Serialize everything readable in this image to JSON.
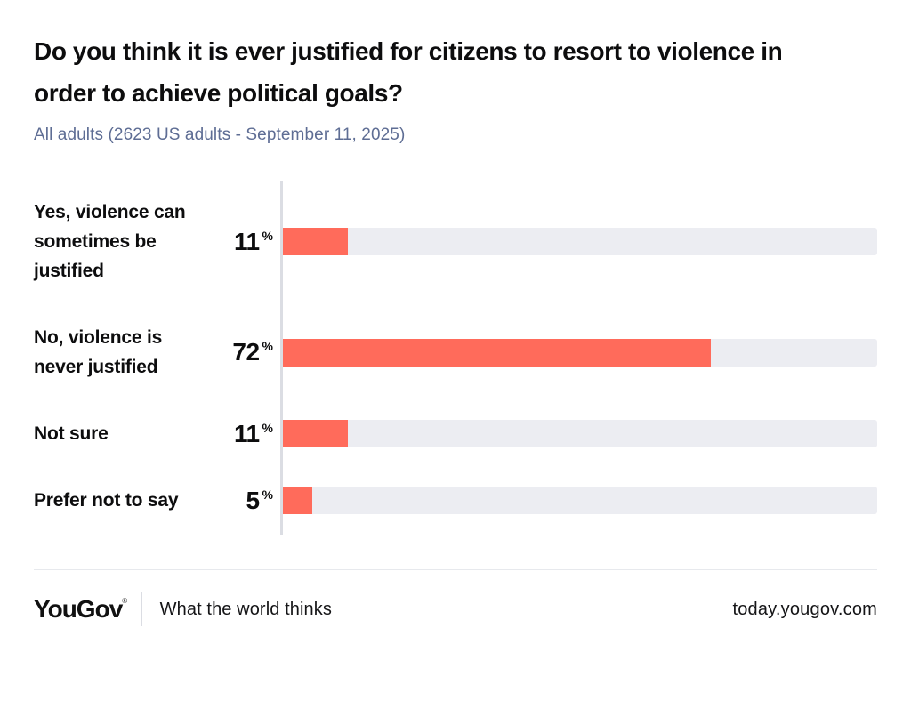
{
  "header": {
    "title": "Do you think it is ever justified for citizens to resort to violence in order to achieve political goals?",
    "subtitle": "All adults (2623 US adults - September 11, 2025)"
  },
  "chart_data": {
    "type": "bar",
    "orientation": "horizontal",
    "categories": [
      "Yes, violence can sometimes be justified",
      "No, violence is never justified",
      "Not sure",
      "Prefer not to say"
    ],
    "values": [
      11,
      72,
      11,
      5
    ],
    "unit": "%",
    "xlim": [
      0,
      100
    ],
    "grid": false,
    "legend": "none",
    "title": "Do you think it is ever justified for citizens to resort to violence in order to achieve political goals?",
    "xlabel": "",
    "ylabel": ""
  },
  "colors": {
    "bar": "#FF6B5B",
    "track": "#ECEDF2",
    "axis": "#DBDDE3",
    "divider": "#E7E9ED",
    "subtitle": "#5E6D94",
    "ink": "#0D0D0E"
  },
  "footer": {
    "logo": "YouGov",
    "logo_mark": "®",
    "tagline": "What the world thinks",
    "url": "today.yougov.com"
  }
}
